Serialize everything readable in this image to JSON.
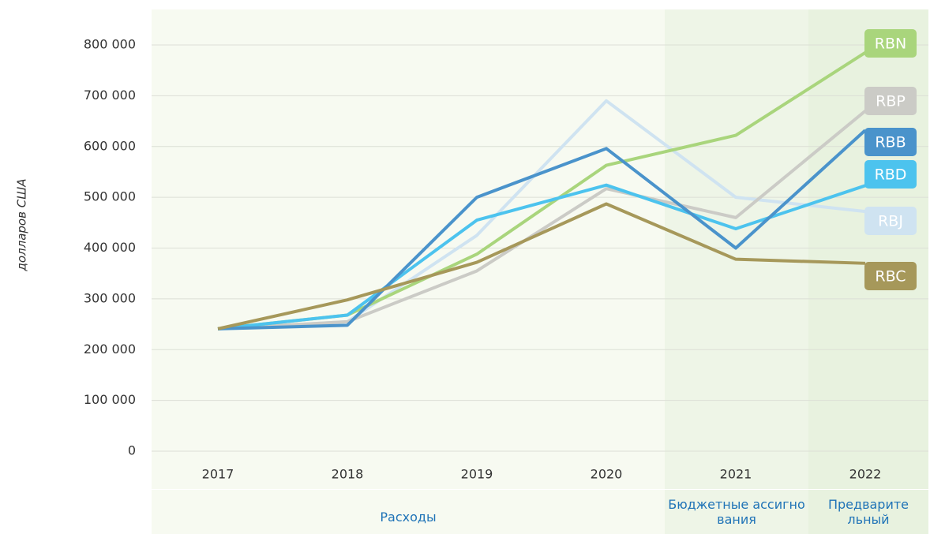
{
  "chart_data": {
    "type": "line",
    "y_label": "долларов США",
    "categories": [
      "2017",
      "2018",
      "2019",
      "2020",
      "2021",
      "2022"
    ],
    "sections": [
      "Расходы",
      "Бюджетные ассигнования",
      "Предварительный"
    ],
    "series": [
      {
        "name": "RBJ",
        "color": "#cfe3f1",
        "values": [
          241000,
          255000,
          425000,
          690000,
          500000,
          472000
        ]
      },
      {
        "name": "RBP",
        "color": "#cbcbc6",
        "values": [
          241000,
          255000,
          355000,
          517000,
          460000,
          670000
        ]
      },
      {
        "name": "RBN",
        "color": "#a9d57c",
        "values": [
          241000,
          268000,
          388000,
          563000,
          622000,
          785000
        ]
      },
      {
        "name": "RBD",
        "color": "#4cc3ee",
        "values": [
          241000,
          268000,
          455000,
          524000,
          438000,
          523000
        ]
      },
      {
        "name": "RBB",
        "color": "#4a93cb",
        "values": [
          241000,
          248000,
          500000,
          596000,
          400000,
          632000
        ]
      },
      {
        "name": "RBC",
        "color": "#a6985a",
        "values": [
          241000,
          298000,
          372000,
          487000,
          378000,
          370000
        ]
      }
    ],
    "ylim": [
      0,
      800000
    ],
    "yticks": [
      0,
      {
        "value": 100000,
        "label": "100 000"
      },
      {
        "value": 200000,
        "label": "200 000"
      },
      {
        "value": 300000,
        "label": "300 000"
      },
      {
        "value": 400000,
        "label": "400 000"
      },
      {
        "value": 500000,
        "label": "500 000"
      },
      {
        "value": 600000,
        "label": "600 000"
      },
      {
        "value": 700000,
        "label": "700 000"
      },
      {
        "value": 800000,
        "label": "800 000"
      }
    ],
    "grid": true
  }
}
